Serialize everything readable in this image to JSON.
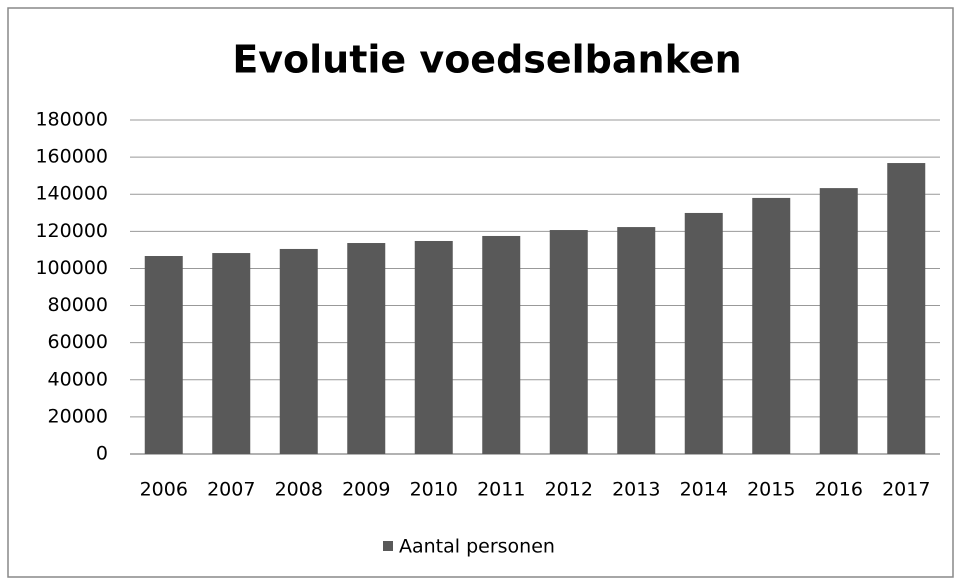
{
  "chart_data": {
    "type": "bar",
    "title": "Evolutie voedselbanken",
    "categories": [
      "2006",
      "2007",
      "2008",
      "2009",
      "2010",
      "2011",
      "2012",
      "2013",
      "2014",
      "2015",
      "2016",
      "2017"
    ],
    "series": [
      {
        "name": "Aantal personen",
        "color": "#595959",
        "values": [
          106700,
          108300,
          110500,
          113700,
          114800,
          117500,
          120700,
          122300,
          129900,
          138000,
          143300,
          156800
        ]
      }
    ],
    "ylim": [
      0,
      180000
    ],
    "yticks": [
      0,
      20000,
      40000,
      60000,
      80000,
      100000,
      120000,
      140000,
      160000,
      180000
    ],
    "grid": true,
    "legend": "bottom"
  }
}
